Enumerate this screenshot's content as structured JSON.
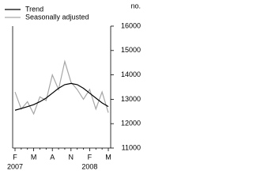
{
  "chart_data": {
    "type": "line",
    "y_unit": "no.",
    "categories": [
      "F",
      null,
      null,
      "M",
      null,
      null,
      "A",
      null,
      null,
      "N",
      null,
      null,
      "F",
      null,
      null,
      "M"
    ],
    "years": [
      "2007",
      null,
      null,
      null,
      null,
      null,
      null,
      null,
      null,
      null,
      null,
      null,
      "2008",
      null,
      null,
      null
    ],
    "series": [
      {
        "name": "Trend",
        "color": "#000000",
        "values": [
          12550,
          12620,
          12700,
          12780,
          12900,
          13050,
          13250,
          13450,
          13600,
          13650,
          13600,
          13450,
          13250,
          13050,
          12850,
          12700
        ]
      },
      {
        "name": "Seasonally adjusted",
        "color": "#a6a6a6",
        "values": [
          13300,
          12600,
          12900,
          12400,
          13100,
          12950,
          14000,
          13400,
          14550,
          13700,
          13400,
          13000,
          13400,
          12600,
          13300,
          12450
        ]
      }
    ],
    "ylim": [
      11000,
      16000
    ],
    "yticks": [
      11000,
      12000,
      13000,
      14000,
      15000,
      16000
    ],
    "legend": "top-left"
  }
}
